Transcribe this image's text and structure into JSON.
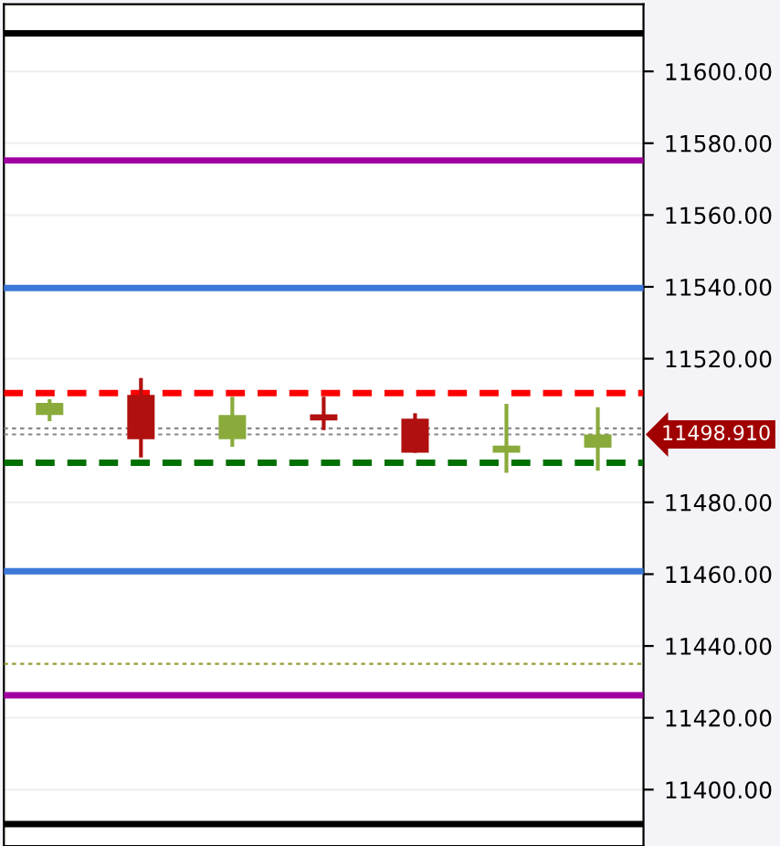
{
  "chart_data": {
    "type": "candlestick",
    "categories": [
      null,
      null,
      null,
      null,
      null,
      null,
      null
    ],
    "ohlc": [
      [
        11504.3,
        11508.7,
        11502.6,
        11507.7
      ],
      [
        11509.9,
        11514.6,
        11492.5,
        11497.6
      ],
      [
        11497.6,
        11509.4,
        11495.5,
        11504.3
      ],
      [
        11504.5,
        11509.4,
        11500.1,
        11502.8
      ],
      [
        11503.3,
        11504.8,
        11493.8,
        11493.8
      ],
      [
        11493.8,
        11507.4,
        11488.2,
        11495.8
      ],
      [
        11495.2,
        11506.5,
        11488.8,
        11498.9
      ]
    ],
    "colors": [
      "#8aab3c",
      "#b01010",
      "#8aab3c",
      "#b01010",
      "#b01010",
      "#8aab3c",
      "#8aab3c"
    ],
    "ylim": [
      11384.3,
      11618.7
    ],
    "yticks": [
      {
        "value": 11400,
        "label": "11400.00"
      },
      {
        "value": 11420,
        "label": "11420.00"
      },
      {
        "value": 11440,
        "label": "11440.00"
      },
      {
        "value": 11460,
        "label": "11460.00"
      },
      {
        "value": 11480,
        "label": "11480.00"
      },
      {
        "value": 11520,
        "label": "11520.00"
      },
      {
        "value": 11540,
        "label": "11540.00"
      },
      {
        "value": 11560,
        "label": "11560.00"
      },
      {
        "value": 11580,
        "label": "11580.00"
      },
      {
        "value": 11600,
        "label": "11600.00"
      }
    ],
    "tick_labels": "y",
    "grid": "y",
    "ref_lines": [
      {
        "axis": "y",
        "value": 11610.6,
        "color": "#000000",
        "line_style": "solid"
      },
      {
        "axis": "y",
        "value": 11575.2,
        "color": "#a000a0",
        "line_style": "solid"
      },
      {
        "axis": "y",
        "value": 11539.7,
        "color": "#3c78d8",
        "line_style": "solid"
      },
      {
        "axis": "y",
        "value": 11510.4,
        "color": "#ff0000",
        "line_style": "dashed"
      },
      {
        "axis": "y",
        "value": 11500.6,
        "color": "#888888",
        "line_style": "dotted"
      },
      {
        "axis": "y",
        "value": 11498.91,
        "label": "11498.910",
        "color": "#888888",
        "line_style": "dotted"
      },
      {
        "axis": "y",
        "value": 11491,
        "color": "#007000",
        "line_style": "dashed"
      },
      {
        "axis": "y",
        "value": 11460.8,
        "color": "#3c78d8",
        "line_style": "solid"
      },
      {
        "axis": "y",
        "value": 11435,
        "color": "#999933",
        "line_style": "dotted"
      },
      {
        "axis": "y",
        "value": 11426.3,
        "color": "#a000a0",
        "line_style": "solid"
      },
      {
        "axis": "y",
        "value": 11390.4,
        "color": "#000000",
        "line_style": "solid"
      }
    ]
  }
}
